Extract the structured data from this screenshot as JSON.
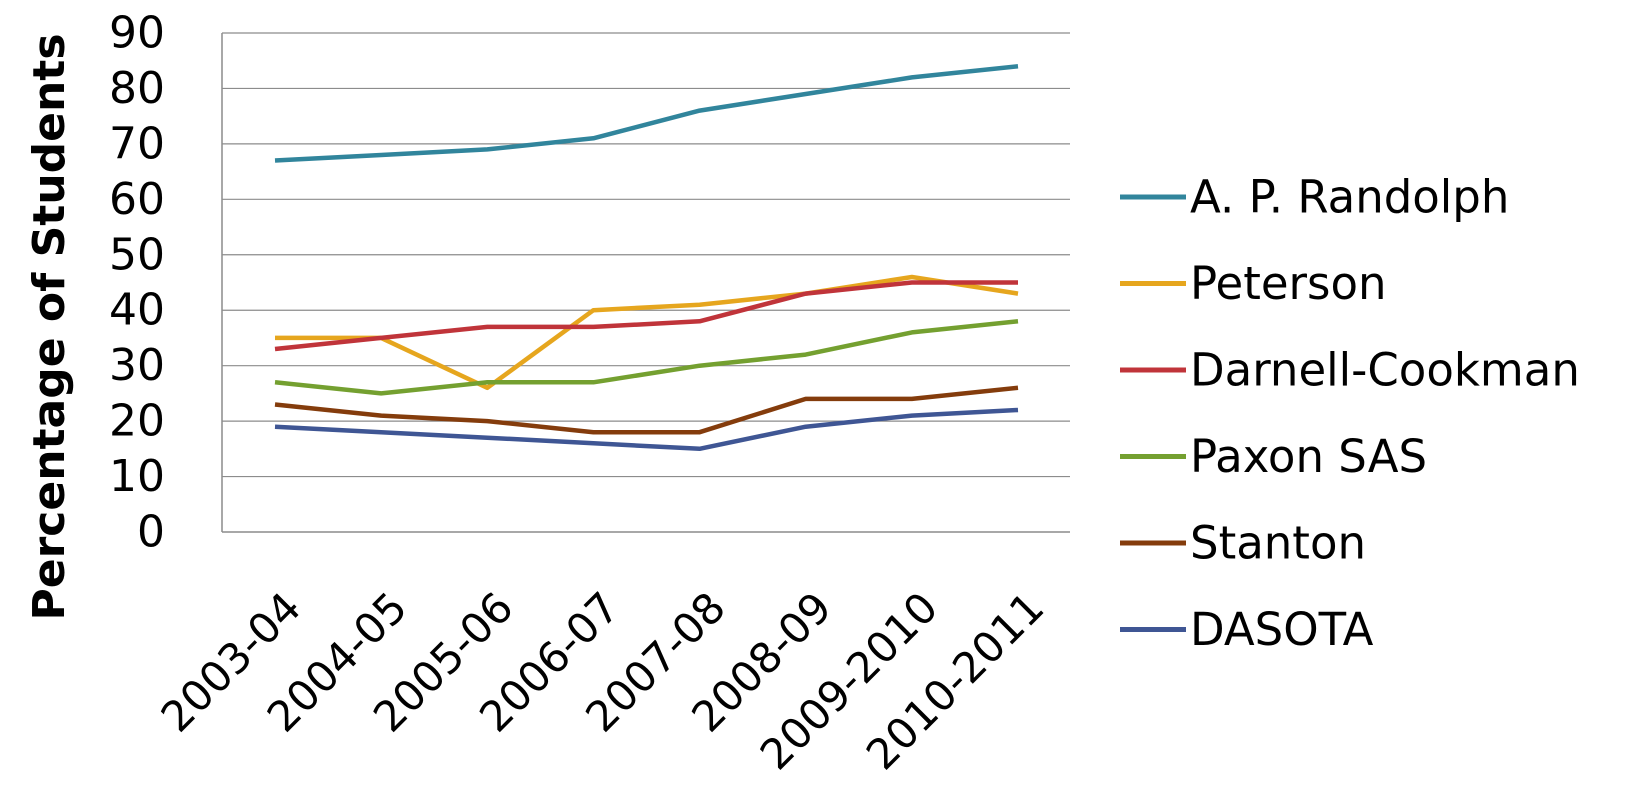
{
  "chart_data": {
    "type": "line",
    "title": "",
    "xlabel": "",
    "ylabel": "Percentage of Students",
    "ylim": [
      0,
      90
    ],
    "yticks": [
      "0",
      "10",
      "20",
      "30",
      "40",
      "50",
      "60",
      "70",
      "80",
      "90"
    ],
    "grid": true,
    "legend_position": "right",
    "categories": [
      "2003-04",
      "2004-05",
      "2005-06",
      "2006-07",
      "2007-08",
      "2008-09",
      "2009-2010",
      "2010-2011"
    ],
    "series": [
      {
        "name": "A. P. Randolph",
        "color": "#31859c",
        "values": [
          67,
          68,
          69,
          71,
          76,
          79,
          82,
          84
        ]
      },
      {
        "name": "Peterson",
        "color": "#e6a61e",
        "values": [
          35,
          35,
          26,
          40,
          41,
          43,
          46,
          43
        ]
      },
      {
        "name": "Darnell-Cookman",
        "color": "#c0343a",
        "values": [
          33,
          35,
          37,
          37,
          38,
          43,
          45,
          45
        ]
      },
      {
        "name": "Paxon SAS",
        "color": "#74a030",
        "values": [
          27,
          25,
          27,
          27,
          30,
          32,
          36,
          38
        ]
      },
      {
        "name": "Stanton",
        "color": "#843c0c",
        "values": [
          23,
          21,
          20,
          18,
          18,
          24,
          24,
          26
        ]
      },
      {
        "name": "DASOTA",
        "color": "#3f5694",
        "values": [
          19,
          18,
          17,
          16,
          15,
          19,
          21,
          22
        ]
      }
    ]
  }
}
